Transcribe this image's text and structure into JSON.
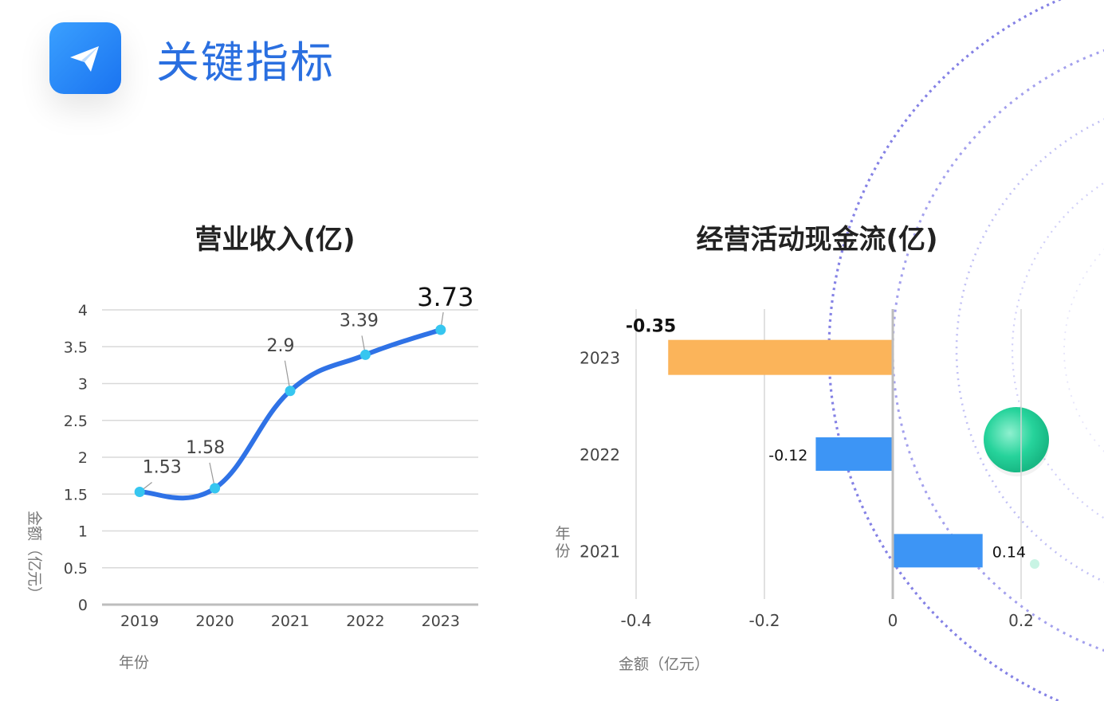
{
  "header": {
    "title": "关键指标",
    "icon": "paper-plane-icon"
  },
  "colors": {
    "accent_blue": "#2a6fe0",
    "line_blue": "#2f72e6",
    "point_cyan": "#36c6f0",
    "bar_orange": "#fbb45a",
    "bar_blue": "#3d95f5"
  },
  "chart_data": [
    {
      "type": "line",
      "title": "营业收入(亿)",
      "xlabel": "年份",
      "ylabel": "金额（亿元）",
      "categories": [
        "2019",
        "2020",
        "2021",
        "2022",
        "2023"
      ],
      "values": [
        1.53,
        1.58,
        2.9,
        3.39,
        3.73
      ],
      "data_labels": [
        "1.53",
        "1.58",
        "2.9",
        "3.39",
        "3.73"
      ],
      "ylim": [
        0,
        4
      ],
      "yticks": [
        "0",
        "0.5",
        "1",
        "1.5",
        "2",
        "2.5",
        "3",
        "3.5",
        "4"
      ],
      "grid": true,
      "smooth": true
    },
    {
      "type": "bar",
      "orientation": "horizontal",
      "title": "经营活动现金流(亿)",
      "xlabel": "金额（亿元）",
      "ylabel": "年份",
      "categories": [
        "2023",
        "2022",
        "2021"
      ],
      "values": [
        -0.35,
        -0.12,
        0.14
      ],
      "data_labels": [
        "-0.35",
        "-0.12",
        "0.14"
      ],
      "bar_colors": [
        "#fbb45a",
        "#3d95f5",
        "#3d95f5"
      ],
      "xlim": [
        -0.4,
        0.2
      ],
      "xticks": [
        "-0.4",
        "-0.2",
        "0",
        "0.2"
      ],
      "grid": true
    }
  ]
}
